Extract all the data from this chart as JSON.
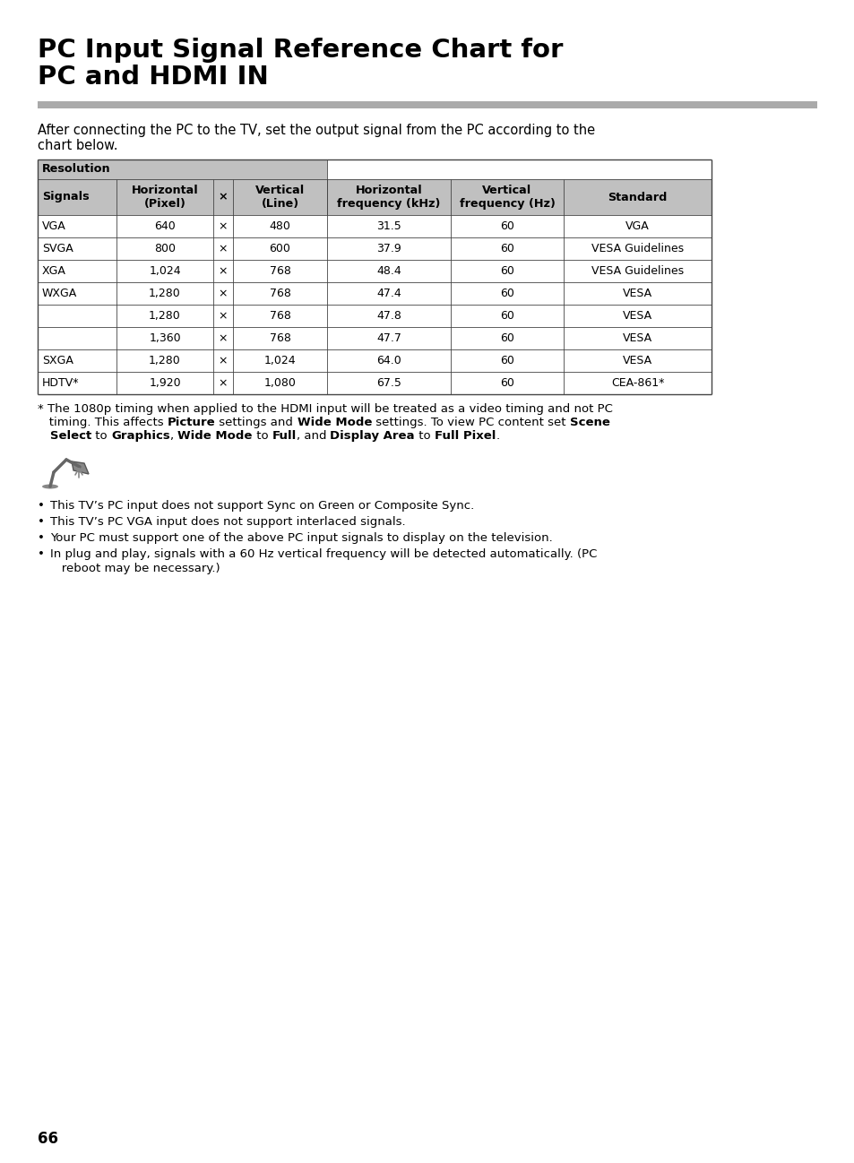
{
  "title_line1": "PC Input Signal Reference Chart for",
  "title_line2": "PC and HDMI IN",
  "intro_text1": "After connecting the PC to the TV, set the output signal from the PC according to the",
  "intro_text2": "chart below.",
  "table_data": [
    [
      "VGA",
      "640",
      "×",
      "480",
      "31.5",
      "60",
      "VGA"
    ],
    [
      "SVGA",
      "800",
      "×",
      "600",
      "37.9",
      "60",
      "VESA Guidelines"
    ],
    [
      "XGA",
      "1,024",
      "×",
      "768",
      "48.4",
      "60",
      "VESA Guidelines"
    ],
    [
      "WXGA",
      "1,280",
      "×",
      "768",
      "47.4",
      "60",
      "VESA"
    ],
    [
      "",
      "1,280",
      "×",
      "768",
      "47.8",
      "60",
      "VESA"
    ],
    [
      "",
      "1,360",
      "×",
      "768",
      "47.7",
      "60",
      "VESA"
    ],
    [
      "SXGA",
      "1,280",
      "×",
      "1,024",
      "64.0",
      "60",
      "VESA"
    ],
    [
      "HDTV*",
      "1,920",
      "×",
      "1,080",
      "67.5",
      "60",
      "CEA-861*"
    ]
  ],
  "footnote_lines": [
    [
      [
        "* ",
        false
      ],
      [
        "The 1080p timing when applied to the HDMI input will be treated as a video timing and not PC",
        false
      ]
    ],
    [
      [
        "   timing. This affects ",
        false
      ],
      [
        "Picture",
        true
      ],
      [
        " settings and ",
        false
      ],
      [
        "Wide Mode",
        true
      ],
      [
        " settings. To view PC content set ",
        false
      ],
      [
        "Scene",
        true
      ]
    ],
    [
      [
        "   Select",
        true
      ],
      [
        " to ",
        false
      ],
      [
        "Graphics",
        true
      ],
      [
        ", ",
        false
      ],
      [
        "Wide Mode",
        true
      ],
      [
        " to ",
        false
      ],
      [
        "Full",
        true
      ],
      [
        ", and ",
        false
      ],
      [
        "Display Area",
        true
      ],
      [
        " to ",
        false
      ],
      [
        "Full Pixel",
        true
      ],
      [
        ".",
        false
      ]
    ]
  ],
  "bullets": [
    "This TV’s PC input does not support Sync on Green or Composite Sync.",
    "This TV’s PC VGA input does not support interlaced signals.",
    "Your PC must support one of the above PC input signals to display on the television.",
    [
      "In plug and play, signals with a 60 Hz vertical frequency will be detected automatically. (PC",
      "   reboot may be necessary.)"
    ]
  ],
  "page_number": "66",
  "header_bg_color": "#c0c0c0",
  "divider_color": "#aaaaaa",
  "border_color": "#444444",
  "text_color": "#000000",
  "bg_color": "#ffffff"
}
